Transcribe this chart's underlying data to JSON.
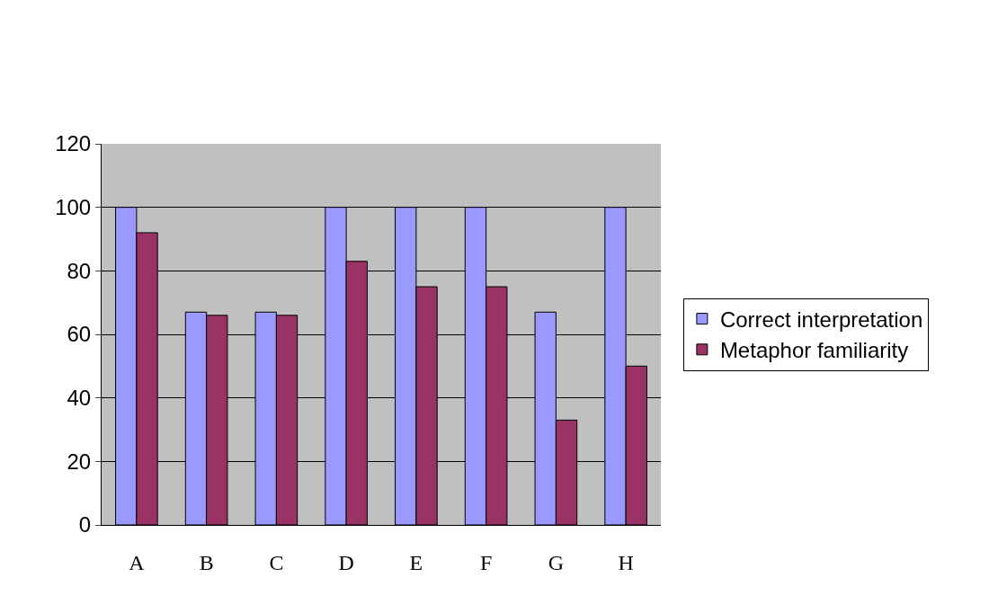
{
  "chart_data": {
    "type": "bar",
    "categories": [
      "A",
      "B",
      "C",
      "D",
      "E",
      "F",
      "G",
      "H"
    ],
    "series": [
      {
        "name": "Correct interpretation",
        "color": "#9999ff",
        "values": [
          100,
          67,
          67,
          100,
          100,
          100,
          67,
          100
        ]
      },
      {
        "name": "Metaphor familiarity",
        "color": "#993366",
        "values": [
          92,
          66,
          66,
          83,
          75,
          75,
          33,
          50
        ]
      }
    ],
    "ylim": [
      0,
      120
    ],
    "yticks": [
      0,
      20,
      40,
      60,
      80,
      100,
      120
    ],
    "grid": "y",
    "legend": "right"
  }
}
